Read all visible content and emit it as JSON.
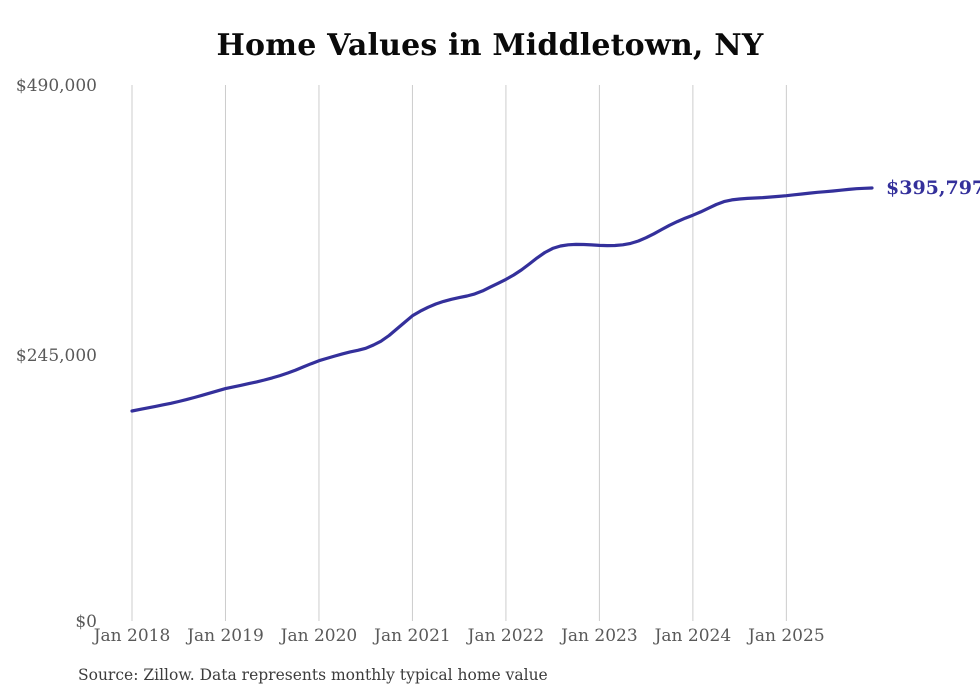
{
  "chart": {
    "title": "Home Values in Middletown, NY",
    "source_note": "Source: Zillow. Data represents monthly typical home value",
    "colors": {
      "line": "#34309b",
      "end_label": "#34309b",
      "gridline": "#cccccc",
      "axis_text": "#595959",
      "title_text": "#0a0a0a",
      "source_text": "#3c3c3c",
      "background": "#ffffff"
    }
  },
  "chart_data": {
    "type": "line",
    "title": "Home Values in Middletown, NY",
    "xlabel": "",
    "ylabel": "",
    "ylim": [
      0,
      490000
    ],
    "y_tick_labels": [
      "$0",
      "$245,000",
      "$490,000"
    ],
    "y_tick_values": [
      0,
      245000,
      490000
    ],
    "x_tick_labels": [
      "Jan 2018",
      "Jan 2019",
      "Jan 2020",
      "Jan 2021",
      "Jan 2022",
      "Jan 2023",
      "Jan 2024",
      "Jan 2025"
    ],
    "x_start": "2018-01",
    "x_interval": "monthly",
    "grid": "vertical-only",
    "legend_position": "none",
    "last_value": 395797,
    "last_value_label": "$395,797",
    "series": [
      {
        "name": "Monthly typical home value",
        "values": [
          192000,
          193400,
          194800,
          196200,
          197600,
          199000,
          200700,
          202400,
          204300,
          206300,
          208300,
          210400,
          212500,
          214000,
          215500,
          217000,
          218600,
          220300,
          222200,
          224300,
          226700,
          229400,
          232300,
          235200,
          238000,
          240100,
          242200,
          244200,
          246000,
          247500,
          249300,
          252300,
          256000,
          261000,
          267000,
          273000,
          279000,
          283200,
          286800,
          289800,
          292200,
          294100,
          295600,
          297100,
          299000,
          301800,
          305200,
          308700,
          312300,
          316300,
          321000,
          326400,
          331900,
          336900,
          340600,
          342800,
          343900,
          344300,
          344200,
          343800,
          343400,
          343200,
          343300,
          343900,
          345200,
          347400,
          350400,
          354000,
          357900,
          361700,
          365100,
          368200,
          371000,
          374000,
          377400,
          380800,
          383400,
          385000,
          385800,
          386300,
          386700,
          387100,
          387600,
          388200,
          388800,
          389600,
          390400,
          391200,
          391900,
          392500,
          393100,
          393800,
          394600,
          395200,
          395600,
          395797
        ]
      }
    ]
  }
}
